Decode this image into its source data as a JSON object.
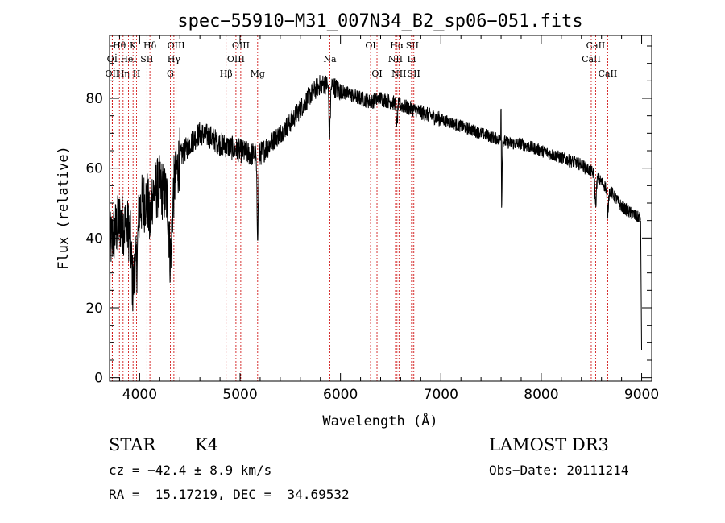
{
  "chart_data": {
    "type": "line",
    "title": "spec−55910−M31_007N34_B2_sp06−051.fits",
    "xlabel": "Wavelength (Å)",
    "ylabel": "Flux (relative)",
    "xlim": [
      3700,
      9100
    ],
    "ylim": [
      -1,
      98
    ],
    "xticks": [
      4000,
      5000,
      6000,
      7000,
      8000,
      9000
    ],
    "yticks": [
      0,
      20,
      40,
      60,
      80
    ],
    "line_color": "#000000",
    "marker_color": "#cc0000",
    "continuum": [
      [
        3700,
        38
      ],
      [
        3800,
        45
      ],
      [
        3900,
        42
      ],
      [
        4000,
        49
      ],
      [
        4100,
        52
      ],
      [
        4200,
        55
      ],
      [
        4300,
        50
      ],
      [
        4400,
        63
      ],
      [
        4500,
        67
      ],
      [
        4600,
        70
      ],
      [
        4700,
        69
      ],
      [
        4800,
        67
      ],
      [
        4900,
        66
      ],
      [
        5000,
        65
      ],
      [
        5100,
        64
      ],
      [
        5200,
        64
      ],
      [
        5300,
        67
      ],
      [
        5400,
        70
      ],
      [
        5500,
        73
      ],
      [
        5600,
        77
      ],
      [
        5700,
        81
      ],
      [
        5800,
        84
      ],
      [
        5900,
        84
      ],
      [
        6000,
        82
      ],
      [
        6100,
        81
      ],
      [
        6200,
        80
      ],
      [
        6300,
        79
      ],
      [
        6400,
        80
      ],
      [
        6500,
        79
      ],
      [
        6600,
        78
      ],
      [
        6700,
        77
      ],
      [
        6800,
        76
      ],
      [
        6900,
        75
      ],
      [
        7000,
        74
      ],
      [
        7100,
        73
      ],
      [
        7200,
        72
      ],
      [
        7300,
        71
      ],
      [
        7400,
        70
      ],
      [
        7500,
        69
      ],
      [
        7600,
        68
      ],
      [
        7700,
        67
      ],
      [
        7800,
        67
      ],
      [
        7900,
        66
      ],
      [
        8000,
        65
      ],
      [
        8100,
        64
      ],
      [
        8200,
        63
      ],
      [
        8300,
        62
      ],
      [
        8400,
        61
      ],
      [
        8500,
        59
      ],
      [
        8600,
        56
      ],
      [
        8700,
        53
      ],
      [
        8800,
        49
      ],
      [
        8900,
        47
      ],
      [
        8950,
        46
      ]
    ],
    "absorption_features": [
      {
        "x": 3934,
        "depth": 18,
        "width": 20
      },
      {
        "x": 3969,
        "depth": 14,
        "width": 18
      },
      {
        "x": 4101,
        "depth": 8,
        "width": 15
      },
      {
        "x": 4308,
        "depth": 16,
        "width": 20
      },
      {
        "x": 5175,
        "depth": 22,
        "width": 10
      },
      {
        "x": 5892,
        "depth": 14,
        "width": 10
      },
      {
        "x": 6563,
        "depth": 6,
        "width": 8
      },
      {
        "x": 7605,
        "depth": 20,
        "width": 6
      },
      {
        "x": 8542,
        "depth": 8,
        "width": 10
      },
      {
        "x": 8662,
        "depth": 7,
        "width": 10
      }
    ],
    "emission_features": [
      {
        "x": 7600,
        "height": 22,
        "width": 3
      }
    ],
    "line_markers": [
      {
        "label": "OİI",
        "x": 3727,
        "row": 3
      },
      {
        "label": "Oİ",
        "x": 3727,
        "row": 2
      },
      {
        "label": "Hθ",
        "x": 3798,
        "row": 1
      },
      {
        "label": "Hη",
        "x": 3835,
        "row": 3
      },
      {
        "label": "HeI",
        "x": 3889,
        "row": 2
      },
      {
        "label": "K",
        "x": 3934,
        "row": 1
      },
      {
        "label": "H",
        "x": 3969,
        "row": 3
      },
      {
        "label": "SII",
        "x": 4072,
        "row": 2
      },
      {
        "label": "Hδ",
        "x": 4102,
        "row": 1
      },
      {
        "label": "G",
        "x": 4305,
        "row": 3
      },
      {
        "label": "OIII",
        "x": 4363,
        "row": 1
      },
      {
        "label": "Hγ",
        "x": 4341,
        "row": 2
      },
      {
        "label": "Hβ",
        "x": 4861,
        "row": 3
      },
      {
        "label": "OIII",
        "x": 4959,
        "row": 2
      },
      {
        "label": "OIII",
        "x": 5007,
        "row": 1
      },
      {
        "label": "Mg",
        "x": 5175,
        "row": 3
      },
      {
        "label": "Na",
        "x": 5894,
        "row": 2
      },
      {
        "label": "OI",
        "x": 6300,
        "row": 1
      },
      {
        "label": "OI",
        "x": 6364,
        "row": 3
      },
      {
        "label": "Hα",
        "x": 6563,
        "row": 1
      },
      {
        "label": "NII",
        "x": 6548,
        "row": 2
      },
      {
        "label": "NII",
        "x": 6583,
        "row": 3
      },
      {
        "label": "Li",
        "x": 6708,
        "row": 2
      },
      {
        "label": "SII",
        "x": 6716,
        "row": 1
      },
      {
        "label": "SII",
        "x": 6731,
        "row": 3
      },
      {
        "label": "CaII",
        "x": 8498,
        "row": 2
      },
      {
        "label": "CaII",
        "x": 8542,
        "row": 1
      },
      {
        "label": "CaII",
        "x": 8662,
        "row": 3
      }
    ]
  },
  "info": {
    "object_class": "STAR",
    "subclass": "K4",
    "survey": "LAMOST DR3",
    "velocity": "cz = −42.4 ± 8.9 km/s",
    "obs_date": "Obs−Date: 20111214",
    "coords": "RA =  15.17219, DEC =  34.69532"
  }
}
